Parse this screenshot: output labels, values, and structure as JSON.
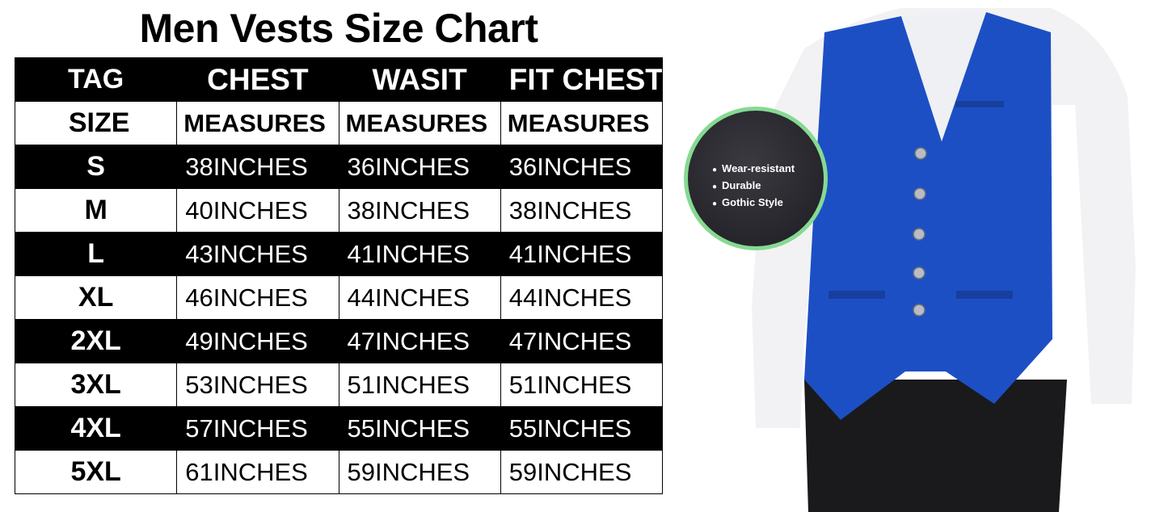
{
  "title": "Men Vests Size Chart",
  "table": {
    "header_row1": [
      "TAG",
      "CHEST",
      "WASIT",
      "FIT CHEST"
    ],
    "header_row2": [
      "SIZE",
      "MEASURES",
      "MEASURES",
      "MEASURES"
    ],
    "rows": [
      [
        "S",
        "38INCHES",
        "36INCHES",
        "36INCHES"
      ],
      [
        "M",
        "40INCHES",
        "38INCHES",
        "38INCHES"
      ],
      [
        "L",
        "43INCHES",
        "41INCHES",
        "41INCHES"
      ],
      [
        "XL",
        "46INCHES",
        "44INCHES",
        "44INCHES"
      ],
      [
        "2XL",
        "49INCHES",
        "47INCHES",
        "47INCHES"
      ],
      [
        "3XL",
        "53INCHES",
        "51INCHES",
        "51INCHES"
      ],
      [
        "4XL",
        "57INCHES",
        "55INCHES",
        "55INCHES"
      ],
      [
        "5XL",
        "61INCHES",
        "59INCHES",
        "59INCHES"
      ]
    ]
  },
  "features": [
    "Wear-resistant",
    "Durable",
    "Gothic Style"
  ],
  "colors": {
    "vest": "#1d4fc4",
    "badge_ring": "#86d992",
    "badge_bg": "#25242a"
  }
}
